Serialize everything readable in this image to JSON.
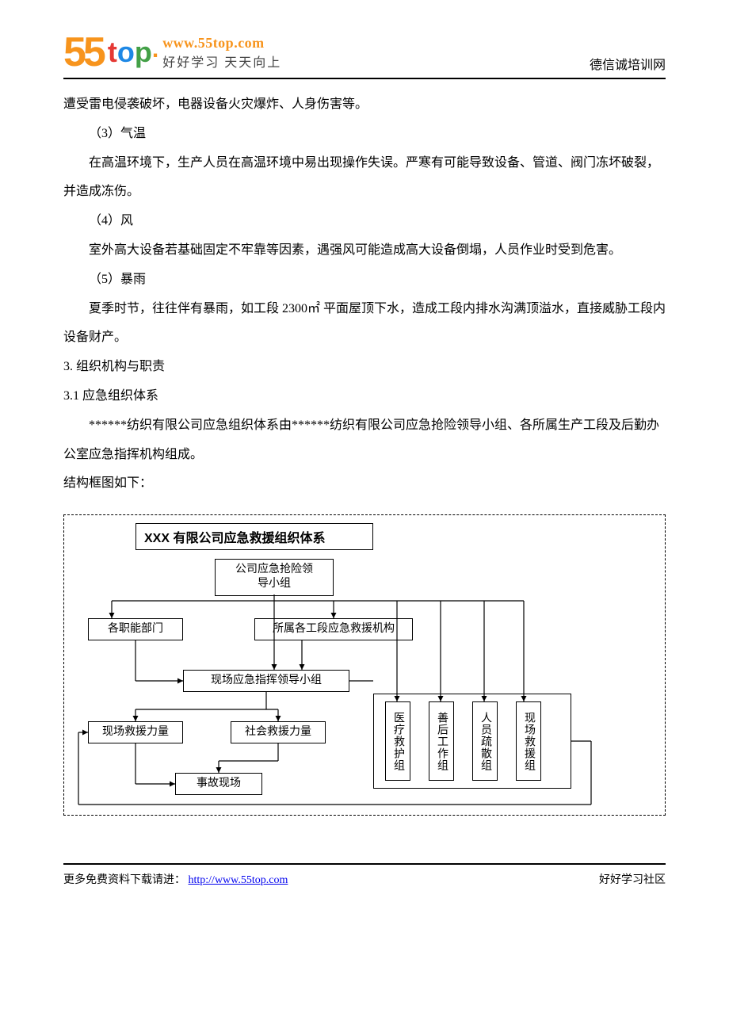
{
  "header": {
    "url_text": "www.55top.com",
    "slogan": "好好学习  天天向上",
    "right_label": "德信诚培训网"
  },
  "body": {
    "p1": "遭受雷电侵袭破坏，电器设备火灾爆炸、人身伤害等。",
    "p2": "（3）气温",
    "p3": "在高温环境下，生产人员在高温环境中易出现操作失误。严寒有可能导致设备、管道、阀门冻坏破裂，并造成冻伤。",
    "p4": "（4）风",
    "p5": "室外高大设备若基础固定不牢靠等因素，遇强风可能造成高大设备倒塌，人员作业时受到危害。",
    "p6": "（5）暴雨",
    "p7": "夏季时节，往往伴有暴雨，如工段 2300㎡ 平面屋顶下水，造成工段内排水沟满顶溢水，直接威胁工段内设备财产。",
    "h3": "3.  组织机构与职责",
    "h31": "3.1 应急组织体系",
    "p8": "******纺织有限公司应急组织体系由******纺织有限公司应急抢险领导小组、各所属生产工段及后勤办公室应急指挥机构组成。",
    "p9": "结构框图如下："
  },
  "chart": {
    "title": "XXX 有限公司应急救援组织体系",
    "n_top": "公司应急抢险领\n导小组",
    "n_dept": "各职能部门",
    "n_sub": "所属各工段应急救援机构",
    "n_cmd": "现场应急指挥领导小组",
    "n_onsite_force": "现场救援力量",
    "n_social_force": "社会救援力量",
    "n_scene": "事故现场",
    "g1": "医疗救护组",
    "g2": "善后工作组",
    "g3": "人员疏散组",
    "g4": "现场救援组",
    "colors": {
      "border": "#000000",
      "dash": "#000000",
      "bg": "#ffffff"
    }
  },
  "footer": {
    "left_prefix": "更多免费资料下载请进：",
    "link_text": "http://www.55top.com",
    "right": "好好学习社区"
  }
}
